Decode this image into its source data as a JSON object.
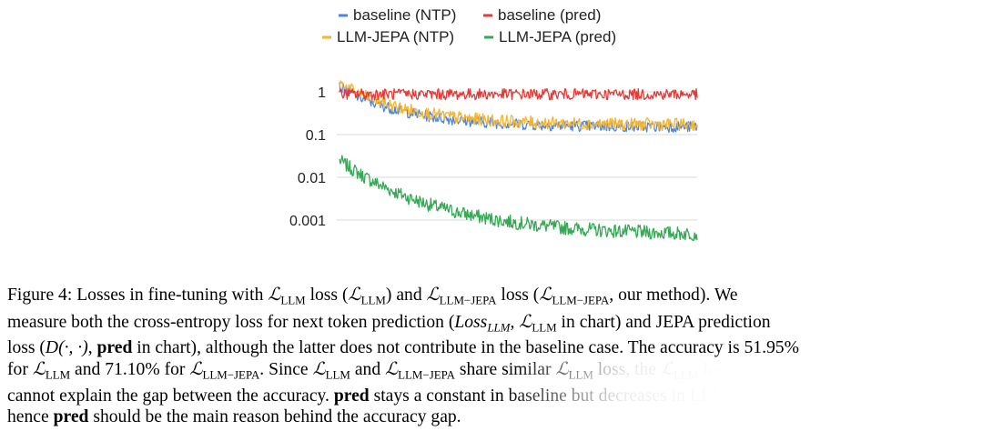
{
  "chart_data": {
    "type": "line",
    "y_scale": "log",
    "y_ticks": [
      "1",
      "0.1",
      "0.01",
      "0.001"
    ],
    "ylim": [
      0.0003,
      2.5
    ],
    "grid": true,
    "legend_position": "top",
    "series": [
      {
        "name": "baseline (NTP)",
        "color": "#4a86e8",
        "start": 1.3,
        "end": 0.15,
        "decay_steps": 80,
        "noise": 1.35
      },
      {
        "name": "baseline (pred)",
        "color": "#e53935",
        "start": 0.9,
        "end": 0.88,
        "decay_steps": 20,
        "noise": 1.35
      },
      {
        "name": "LLM-JEPA (NTP)",
        "color": "#f7b52c",
        "start": 1.6,
        "end": 0.17,
        "decay_steps": 80,
        "noise": 1.4
      },
      {
        "name": "LLM-JEPA (pred)",
        "color": "#34a853",
        "start": 0.025,
        "end": 0.00042,
        "decay_steps": 120,
        "noise": 1.45
      }
    ]
  },
  "caption": {
    "lines": [
      [
        "Figure 4: Losses in fine-tuning with ",
        "ℒ",
        "LLM",
        " loss (",
        "ℒ",
        "LLM",
        ") and ",
        "ℒ",
        "LLM−JEPA",
        " loss (",
        "ℒ",
        "LLM−JEPA",
        ", our method). We"
      ],
      [
        "measure both the cross-entropy loss for next token prediction (",
        "Loss",
        "LLM",
        ", ",
        "ℒ",
        "LLM",
        " in chart) and JEPA prediction"
      ],
      [
        "loss (",
        "D(·, ·)",
        ", ",
        "pred",
        " in chart), although the latter does not contribute in the baseline case. The accuracy is ",
        "51.95%"
      ],
      [
        "for ",
        "ℒ",
        "LLM",
        " and ",
        "71.10%",
        " for ",
        "ℒ",
        "LLM−JEPA",
        ". Since ",
        "ℒ",
        "LLM",
        " and ",
        "ℒ",
        "LLM−JEPA",
        " share similar ",
        "ℒ",
        "LLM",
        " loss, the ",
        "ℒ",
        "LLM",
        " loss"
      ],
      [
        "cannot explain the gap between the accuracy. ",
        "pred",
        " stays a constant in baseline but decreases in LLM-JEPA,"
      ],
      [
        "hence ",
        "pred",
        " should be the main reason behind the accuracy gap."
      ]
    ]
  }
}
